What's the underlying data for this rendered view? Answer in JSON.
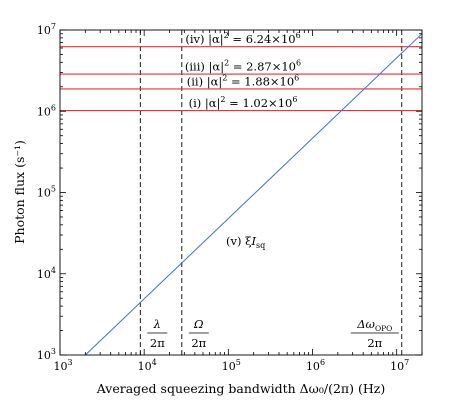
{
  "chart_data": {
    "type": "line",
    "xlabel": "Averaged squeezing bandwidth Δω₀/(2π) (Hz)",
    "ylabel": "Photon flux (s⁻¹)",
    "xscale": "log",
    "yscale": "log",
    "xlim": [
      1000,
      20000000
    ],
    "ylim": [
      1000,
      10000000
    ],
    "grid": false,
    "x_tick_labels": [
      {
        "value": 1000,
        "base": "10",
        "exp": "3"
      },
      {
        "value": 10000,
        "base": "10",
        "exp": "4"
      },
      {
        "value": 100000,
        "base": "10",
        "exp": "5"
      },
      {
        "value": 1000000,
        "base": "10",
        "exp": "6"
      },
      {
        "value": 10000000,
        "base": "10",
        "exp": "7"
      }
    ],
    "y_tick_labels": [
      {
        "value": 1000,
        "base": "10",
        "exp": "3"
      },
      {
        "value": 10000,
        "base": "10",
        "exp": "4"
      },
      {
        "value": 100000,
        "base": "10",
        "exp": "5"
      },
      {
        "value": 1000000,
        "base": "10",
        "exp": "6"
      },
      {
        "value": 10000000,
        "base": "10",
        "exp": "7"
      }
    ],
    "series": [
      {
        "name": "(v) ξI_sq",
        "label_prefix": "(v) ξ",
        "label_main": "I",
        "label_sub": "sq",
        "color": "#3b6fd8",
        "x": [
          2000,
          20000000
        ],
        "y": [
          1000,
          9000000
        ]
      }
    ],
    "horizontal_lines": [
      {
        "label": "(iv) |α|² = 6.24×10⁶",
        "prefix": "(iv) |α|",
        "sup": "2",
        "mid": " = 6.24×10",
        "exp": "6",
        "y": 6240000,
        "color": "#e8303a"
      },
      {
        "label": "(iii) |α|² = 2.87×10⁶",
        "prefix": "(iii) |α|",
        "sup": "2",
        "mid": " = 2.87×10",
        "exp": "6",
        "y": 2870000,
        "color": "#e8303a"
      },
      {
        "label": "(ii) |α|² = 1.88×10⁶",
        "prefix": "(ii) |α|",
        "sup": "2",
        "mid": " = 1.88×10",
        "exp": "6",
        "y": 1880000,
        "color": "#e8303a"
      },
      {
        "label": "(i) |α|² = 1.02×10⁶",
        "prefix": "(i) |α|",
        "sup": "2",
        "mid": " = 1.02×10",
        "exp": "6",
        "y": 1020000,
        "color": "#e8303a"
      }
    ],
    "vertical_lines": [
      {
        "name": "lambda",
        "x": 9000,
        "numerator": "λ",
        "denominator": "2π",
        "style": "dashed"
      },
      {
        "name": "omega",
        "x": 28000,
        "numerator": "Ω",
        "denominator": "2π",
        "style": "dashed"
      },
      {
        "name": "delta-omega-opo",
        "x": 11500000,
        "numerator": "Δω",
        "numerator_sub": "OPO",
        "denominator": "2π",
        "style": "dashed"
      }
    ]
  }
}
